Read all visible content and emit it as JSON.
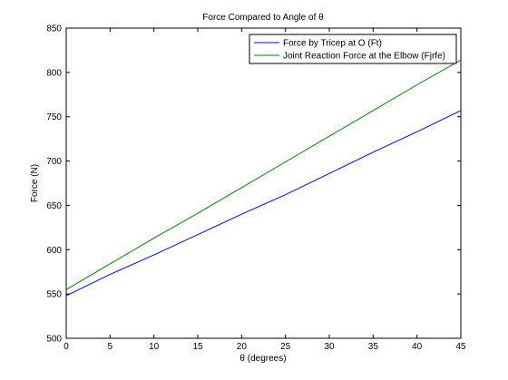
{
  "chart_data": {
    "type": "line",
    "title": "Force Compared to Angle of  θ",
    "xlabel": "θ (degrees)",
    "ylabel": "Force (N)",
    "xlim": [
      0,
      45
    ],
    "ylim": [
      500,
      850
    ],
    "x_ticks": [
      0,
      5,
      10,
      15,
      20,
      25,
      30,
      35,
      40,
      45
    ],
    "y_ticks": [
      500,
      550,
      600,
      650,
      700,
      750,
      800,
      850
    ],
    "grid": false,
    "legend_position": "top-right",
    "series": [
      {
        "name": "Force by Tricep at O (Ft)",
        "color": "#0000ff",
        "x": [
          0,
          5,
          10,
          15,
          20,
          25,
          30,
          35,
          40,
          45
        ],
        "y": [
          548,
          572,
          594,
          617,
          640,
          662,
          686,
          710,
          733,
          757
        ]
      },
      {
        "name": "Joint Reaction Force at the Elbow (Fjrfe)",
        "color": "#008000",
        "x": [
          0,
          5,
          10,
          15,
          20,
          25,
          30,
          35,
          40,
          45
        ],
        "y": [
          555,
          584,
          613,
          641,
          670,
          699,
          728,
          757,
          786,
          814
        ]
      }
    ]
  }
}
